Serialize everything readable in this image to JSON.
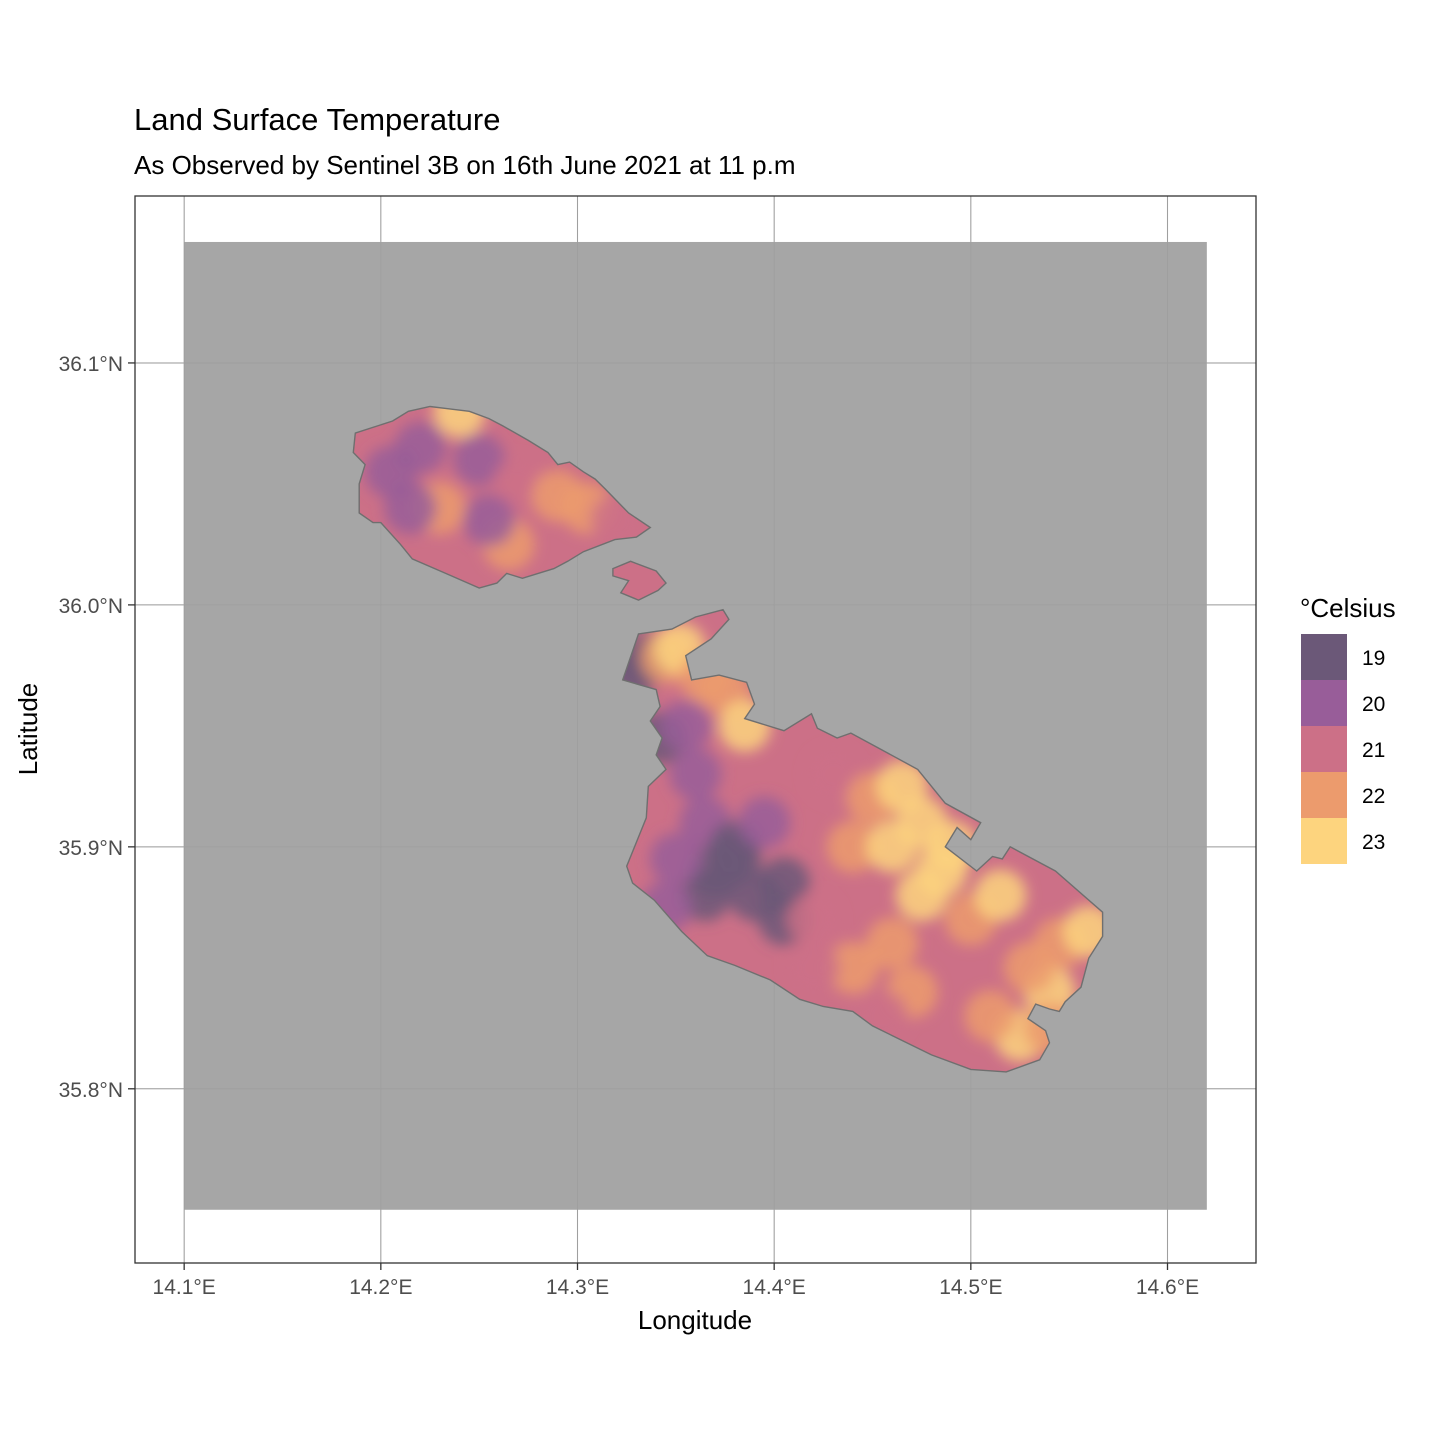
{
  "title": "Land Surface Temperature",
  "subtitle": "As Observed by Sentinel 3B on 16th June 2021 at 11 p.m",
  "chart_data": {
    "type": "heatmap",
    "xlabel": "Longitude",
    "ylabel": "Latitude",
    "xlim": [
      14.075,
      14.645
    ],
    "ylim": [
      35.728,
      36.169
    ],
    "raster_extent": {
      "lon": [
        14.1,
        14.62
      ],
      "lat": [
        35.75,
        36.15
      ]
    },
    "x_ticks": [
      {
        "value": 14.1,
        "label": "14.1°E"
      },
      {
        "value": 14.2,
        "label": "14.2°E"
      },
      {
        "value": 14.3,
        "label": "14.3°E"
      },
      {
        "value": 14.4,
        "label": "14.4°E"
      },
      {
        "value": 14.5,
        "label": "14.5°E"
      },
      {
        "value": 14.6,
        "label": "14.6°E"
      }
    ],
    "y_ticks": [
      {
        "value": 35.8,
        "label": "35.8°N"
      },
      {
        "value": 35.9,
        "label": "35.9°N"
      },
      {
        "value": 36.0,
        "label": "36.0°N"
      },
      {
        "value": 36.1,
        "label": "36.1°N"
      }
    ],
    "grid": true,
    "background_color": "#a6a6a6",
    "legend": {
      "title": "°Celsius",
      "position": "right",
      "items": [
        {
          "label": "19",
          "value": 19,
          "color": "#6b5878"
        },
        {
          "label": "20",
          "value": 20,
          "color": "#985d99"
        },
        {
          "label": "21",
          "value": 21,
          "color": "#cc7087"
        },
        {
          "label": "22",
          "value": 22,
          "color": "#ec9b6d"
        },
        {
          "label": "23",
          "value": 23,
          "color": "#fdd47e"
        }
      ]
    },
    "islands": [
      {
        "name": "Gozo",
        "base_value": 21,
        "outline": [
          [
            14.187,
            36.071
          ],
          [
            14.206,
            36.076
          ],
          [
            14.214,
            36.08
          ],
          [
            14.225,
            36.082
          ],
          [
            14.235,
            36.081
          ],
          [
            14.245,
            36.08
          ],
          [
            14.255,
            36.077
          ],
          [
            14.262,
            36.074
          ],
          [
            14.275,
            36.068
          ],
          [
            14.285,
            36.063
          ],
          [
            14.29,
            36.058
          ],
          [
            14.296,
            36.059
          ],
          [
            14.303,
            36.055
          ],
          [
            14.309,
            36.052
          ],
          [
            14.314,
            36.048
          ],
          [
            14.32,
            36.043
          ],
          [
            14.326,
            36.038
          ],
          [
            14.337,
            36.032
          ],
          [
            14.33,
            36.028
          ],
          [
            14.319,
            36.027
          ],
          [
            14.303,
            36.022
          ],
          [
            14.295,
            36.018
          ],
          [
            14.288,
            36.015
          ],
          [
            14.272,
            36.011
          ],
          [
            14.264,
            36.013
          ],
          [
            14.259,
            36.009
          ],
          [
            14.25,
            36.007
          ],
          [
            14.233,
            36.013
          ],
          [
            14.216,
            36.019
          ],
          [
            14.21,
            36.025
          ],
          [
            14.2,
            36.034
          ],
          [
            14.196,
            36.034
          ],
          [
            14.189,
            36.038
          ],
          [
            14.189,
            36.05
          ],
          [
            14.192,
            36.058
          ],
          [
            14.186,
            36.063
          ]
        ],
        "hotspots": [
          [
            14.24,
            36.08,
            23
          ],
          [
            14.22,
            36.065,
            20
          ],
          [
            14.205,
            36.055,
            20
          ],
          [
            14.25,
            36.06,
            20
          ],
          [
            14.23,
            36.04,
            22
          ],
          [
            14.27,
            36.05,
            21
          ],
          [
            14.29,
            36.045,
            22
          ],
          [
            14.305,
            36.04,
            22
          ],
          [
            14.265,
            36.025,
            22
          ],
          [
            14.215,
            36.04,
            20
          ],
          [
            14.32,
            36.035,
            21
          ],
          [
            14.255,
            36.035,
            20
          ]
        ]
      },
      {
        "name": "Comino",
        "base_value": 21,
        "outline": [
          [
            14.318,
            36.015
          ],
          [
            14.327,
            36.018
          ],
          [
            14.34,
            36.014
          ],
          [
            14.345,
            36.009
          ],
          [
            14.341,
            36.006
          ],
          [
            14.331,
            36.002
          ],
          [
            14.322,
            36.005
          ],
          [
            14.326,
            36.01
          ],
          [
            14.318,
            36.012
          ]
        ],
        "hotspots": []
      },
      {
        "name": "Malta",
        "base_value": 21,
        "outline": [
          [
            14.331,
            35.988
          ],
          [
            14.348,
            35.99
          ],
          [
            14.36,
            35.995
          ],
          [
            14.374,
            35.998
          ],
          [
            14.377,
            35.994
          ],
          [
            14.368,
            35.986
          ],
          [
            14.355,
            35.979
          ],
          [
            14.358,
            35.969
          ],
          [
            14.372,
            35.971
          ],
          [
            14.386,
            35.968
          ],
          [
            14.39,
            35.959
          ],
          [
            14.385,
            35.953
          ],
          [
            14.405,
            35.948
          ],
          [
            14.419,
            35.955
          ],
          [
            14.422,
            35.949
          ],
          [
            14.432,
            35.945
          ],
          [
            14.439,
            35.947
          ],
          [
            14.455,
            35.94
          ],
          [
            14.473,
            35.932
          ],
          [
            14.487,
            35.918
          ],
          [
            14.505,
            35.91
          ],
          [
            14.5,
            35.903
          ],
          [
            14.493,
            35.908
          ],
          [
            14.487,
            35.9
          ],
          [
            14.503,
            35.89
          ],
          [
            14.511,
            35.896
          ],
          [
            14.516,
            35.895
          ],
          [
            14.52,
            35.9
          ],
          [
            14.543,
            35.89
          ],
          [
            14.567,
            35.873
          ],
          [
            14.567,
            35.863
          ],
          [
            14.56,
            35.854
          ],
          [
            14.558,
            35.848
          ],
          [
            14.556,
            35.842
          ],
          [
            14.548,
            35.836
          ],
          [
            14.545,
            35.832
          ],
          [
            14.54,
            35.833
          ],
          [
            14.533,
            35.835
          ],
          [
            14.529,
            35.829
          ],
          [
            14.538,
            35.824
          ],
          [
            14.54,
            35.819
          ],
          [
            14.535,
            35.812
          ],
          [
            14.518,
            35.807
          ],
          [
            14.5,
            35.808
          ],
          [
            14.48,
            35.814
          ],
          [
            14.46,
            35.822
          ],
          [
            14.45,
            35.826
          ],
          [
            14.44,
            35.832
          ],
          [
            14.425,
            35.834
          ],
          [
            14.413,
            35.837
          ],
          [
            14.398,
            35.845
          ],
          [
            14.38,
            35.851
          ],
          [
            14.366,
            35.855
          ],
          [
            14.353,
            35.865
          ],
          [
            14.339,
            35.878
          ],
          [
            14.328,
            35.885
          ],
          [
            14.325,
            35.892
          ],
          [
            14.33,
            35.902
          ],
          [
            14.335,
            35.912
          ],
          [
            14.336,
            35.925
          ],
          [
            14.345,
            35.932
          ],
          [
            14.34,
            35.938
          ],
          [
            14.343,
            35.945
          ],
          [
            14.337,
            35.952
          ],
          [
            14.342,
            35.958
          ],
          [
            14.34,
            35.965
          ],
          [
            14.323,
            35.969
          ]
        ],
        "hotspots": [
          [
            14.328,
            35.972,
            19
          ],
          [
            14.335,
            35.978,
            19
          ],
          [
            14.345,
            35.978,
            22
          ],
          [
            14.352,
            35.982,
            23
          ],
          [
            14.342,
            35.945,
            19
          ],
          [
            14.355,
            35.95,
            20
          ],
          [
            14.365,
            35.97,
            22
          ],
          [
            14.375,
            35.965,
            22
          ],
          [
            14.385,
            35.95,
            23
          ],
          [
            14.36,
            35.93,
            20
          ],
          [
            14.365,
            35.91,
            20
          ],
          [
            14.38,
            35.9,
            19
          ],
          [
            14.37,
            35.89,
            19
          ],
          [
            14.365,
            35.88,
            19
          ],
          [
            14.38,
            35.895,
            19
          ],
          [
            14.39,
            35.88,
            19
          ],
          [
            14.405,
            35.87,
            19
          ],
          [
            14.405,
            35.885,
            19
          ],
          [
            14.395,
            35.91,
            20
          ],
          [
            14.35,
            35.895,
            20
          ],
          [
            14.345,
            35.875,
            20
          ],
          [
            14.43,
            35.93,
            21
          ],
          [
            14.45,
            35.92,
            22
          ],
          [
            14.44,
            35.9,
            22
          ],
          [
            14.46,
            35.9,
            23
          ],
          [
            14.475,
            35.91,
            23
          ],
          [
            14.485,
            35.89,
            23
          ],
          [
            14.49,
            35.9,
            23
          ],
          [
            14.475,
            35.88,
            23
          ],
          [
            14.465,
            35.925,
            23
          ],
          [
            14.5,
            35.87,
            22
          ],
          [
            14.515,
            35.88,
            23
          ],
          [
            14.545,
            35.86,
            22
          ],
          [
            14.56,
            35.865,
            23
          ],
          [
            14.54,
            35.84,
            23
          ],
          [
            14.525,
            35.822,
            23
          ],
          [
            14.54,
            35.825,
            22
          ],
          [
            14.51,
            35.83,
            22
          ],
          [
            14.47,
            35.84,
            22
          ],
          [
            14.455,
            35.83,
            21
          ],
          [
            14.44,
            35.85,
            22
          ],
          [
            14.42,
            35.85,
            21
          ],
          [
            14.46,
            35.86,
            22
          ],
          [
            14.42,
            35.87,
            21
          ],
          [
            14.53,
            35.85,
            22
          ]
        ]
      }
    ]
  }
}
